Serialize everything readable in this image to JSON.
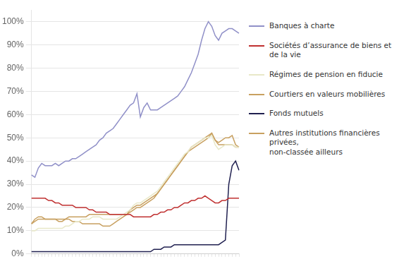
{
  "chart_data": {
    "type": "line",
    "categories": [
      null,
      null,
      null,
      null,
      null,
      null,
      null,
      null,
      null,
      null,
      null,
      null,
      null,
      null,
      null,
      null,
      null,
      null,
      null,
      null,
      null,
      null,
      null,
      null,
      null,
      null,
      null,
      null,
      null,
      null,
      null,
      null,
      null,
      null,
      null,
      null,
      null,
      null,
      null,
      null,
      null,
      null,
      null,
      null,
      null,
      null,
      null,
      null,
      null,
      null,
      null,
      null,
      null,
      null,
      null,
      null,
      null,
      null,
      null,
      null,
      null,
      null
    ],
    "series": [
      {
        "name": "Banques à charte",
        "color": "#9090c8",
        "values": [
          0.34,
          0.33,
          0.37,
          0.39,
          0.38,
          0.38,
          0.38,
          0.39,
          0.38,
          0.39,
          0.4,
          0.4,
          0.41,
          0.41,
          0.42,
          0.43,
          0.44,
          0.45,
          0.46,
          0.47,
          0.49,
          0.5,
          0.52,
          0.53,
          0.54,
          0.56,
          0.58,
          0.6,
          0.62,
          0.64,
          0.65,
          0.69,
          0.59,
          0.63,
          0.65,
          0.62,
          0.62,
          0.62,
          0.63,
          0.64,
          0.65,
          0.66,
          0.67,
          0.68,
          0.7,
          0.72,
          0.75,
          0.78,
          0.82,
          0.86,
          0.92,
          0.97,
          1.0,
          0.98,
          0.94,
          0.92,
          0.95,
          0.96,
          0.97,
          0.97,
          0.96,
          0.95
        ]
      },
      {
        "name": "Sociétés d’assurance de biens et de la vie",
        "color": "#c03030",
        "values": [
          0.24,
          0.24,
          0.24,
          0.24,
          0.24,
          0.23,
          0.23,
          0.22,
          0.22,
          0.21,
          0.21,
          0.21,
          0.21,
          0.2,
          0.2,
          0.2,
          0.2,
          0.19,
          0.19,
          0.18,
          0.18,
          0.18,
          0.18,
          0.17,
          0.17,
          0.17,
          0.17,
          0.17,
          0.17,
          0.17,
          0.16,
          0.16,
          0.16,
          0.16,
          0.16,
          0.16,
          0.17,
          0.17,
          0.18,
          0.18,
          0.19,
          0.19,
          0.2,
          0.2,
          0.21,
          0.22,
          0.22,
          0.23,
          0.23,
          0.24,
          0.24,
          0.25,
          0.24,
          0.23,
          0.22,
          0.22,
          0.23,
          0.23,
          0.24,
          0.24,
          0.24,
          0.24
        ]
      },
      {
        "name": "Régimes de pension en fiducie",
        "color": "#e8e8c8",
        "values": [
          0.1,
          0.1,
          0.11,
          0.11,
          0.11,
          0.11,
          0.11,
          0.11,
          0.11,
          0.11,
          0.12,
          0.12,
          0.13,
          0.14,
          0.14,
          0.15,
          0.15,
          0.15,
          0.16,
          0.16,
          0.16,
          0.15,
          0.15,
          0.15,
          0.15,
          0.15,
          0.16,
          0.17,
          0.18,
          0.19,
          0.21,
          0.22,
          0.22,
          0.23,
          0.24,
          0.25,
          0.26,
          0.27,
          0.29,
          0.31,
          0.33,
          0.35,
          0.37,
          0.39,
          0.41,
          0.43,
          0.44,
          0.46,
          0.47,
          0.48,
          0.49,
          0.5,
          0.5,
          0.51,
          0.47,
          0.45,
          0.46,
          0.47,
          0.47,
          0.47,
          0.46,
          0.46
        ]
      },
      {
        "name": "Courtiers en valeurs mobilières",
        "color": "#c8a060",
        "values": [
          0.13,
          0.14,
          0.15,
          0.15,
          0.15,
          0.15,
          0.15,
          0.15,
          0.15,
          0.15,
          0.15,
          0.15,
          0.14,
          0.14,
          0.14,
          0.13,
          0.13,
          0.13,
          0.13,
          0.13,
          0.13,
          0.12,
          0.12,
          0.12,
          0.13,
          0.14,
          0.15,
          0.16,
          0.17,
          0.19,
          0.2,
          0.21,
          0.21,
          0.22,
          0.23,
          0.24,
          0.25,
          0.26,
          0.28,
          0.3,
          0.32,
          0.34,
          0.36,
          0.38,
          0.4,
          0.42,
          0.44,
          0.45,
          0.46,
          0.47,
          0.48,
          0.49,
          0.5,
          0.52,
          0.49,
          0.48,
          0.49,
          0.5,
          0.5,
          0.51,
          0.47,
          0.46
        ]
      },
      {
        "name": "Fonds mutuels",
        "color": "#202050",
        "values": [
          0.01,
          0.01,
          0.01,
          0.01,
          0.01,
          0.01,
          0.01,
          0.01,
          0.01,
          0.01,
          0.01,
          0.01,
          0.01,
          0.01,
          0.01,
          0.01,
          0.01,
          0.01,
          0.01,
          0.01,
          0.01,
          0.01,
          0.01,
          0.01,
          0.01,
          0.01,
          0.01,
          0.01,
          0.01,
          0.01,
          0.01,
          0.01,
          0.01,
          0.01,
          0.01,
          0.01,
          0.02,
          0.02,
          0.02,
          0.03,
          0.03,
          0.03,
          0.04,
          0.04,
          0.04,
          0.04,
          0.04,
          0.04,
          0.04,
          0.04,
          0.04,
          0.04,
          0.04,
          0.04,
          0.04,
          0.04,
          0.05,
          0.06,
          0.3,
          0.38,
          0.4,
          0.36
        ]
      },
      {
        "name": "Autres institutions financières privées,\nnon-classée ailleurs",
        "color": "#c8a060",
        "values": [
          0.13,
          0.15,
          0.16,
          0.16,
          0.15,
          0.15,
          0.15,
          0.15,
          0.14,
          0.14,
          0.15,
          0.16,
          0.16,
          0.16,
          0.16,
          0.16,
          0.16,
          0.17,
          0.17,
          0.17,
          0.17,
          0.17,
          0.17,
          0.17,
          0.17,
          0.17,
          0.17,
          0.17,
          0.17,
          0.18,
          0.19,
          0.2,
          0.2,
          0.21,
          0.22,
          0.23,
          0.24,
          0.26,
          0.28,
          0.3,
          0.32,
          0.34,
          0.36,
          0.38,
          0.4,
          0.42,
          0.44,
          0.46,
          0.47,
          0.48,
          0.49,
          0.5,
          0.51,
          0.52,
          0.49,
          0.47,
          0.47,
          0.47,
          0.47,
          0.47,
          0.46,
          0.46
        ]
      }
    ],
    "ylim": [
      0,
      1.05
    ],
    "yticks": [
      {
        "value": 0.0,
        "label": "0%"
      },
      {
        "value": 0.1,
        "label": "10%"
      },
      {
        "value": 0.2,
        "label": "20%"
      },
      {
        "value": 0.3,
        "label": "30%"
      },
      {
        "value": 0.4,
        "label": "40%"
      },
      {
        "value": 0.5,
        "label": "50%"
      },
      {
        "value": 0.6,
        "label": "60%"
      },
      {
        "value": 0.7,
        "label": "70%"
      },
      {
        "value": 0.8,
        "label": "80%"
      },
      {
        "value": 0.9,
        "label": "90%"
      },
      {
        "value": 1.0,
        "label": "100%"
      }
    ],
    "grid": true,
    "tick_labels": "y",
    "legend": "right"
  }
}
